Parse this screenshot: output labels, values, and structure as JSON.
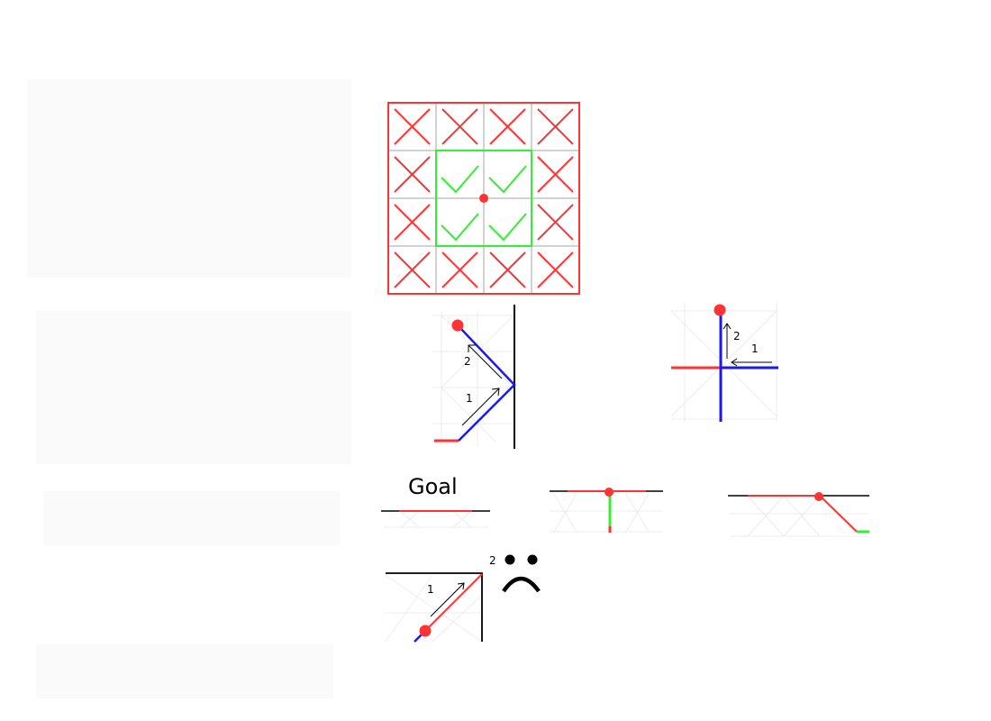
{
  "colors": {
    "red": "#ff3333",
    "green": "#33ee33",
    "blue": "#1a1aee",
    "black": "#000000",
    "grid": "#cccccc",
    "faint": "#e6e6e6"
  },
  "grid_panel": {
    "rows": 4,
    "cols": 4,
    "cells": [
      [
        "cross",
        "cross",
        "cross",
        "cross"
      ],
      [
        "cross",
        "check",
        "check",
        "cross"
      ],
      [
        "cross",
        "check",
        "check",
        "cross"
      ],
      [
        "cross",
        "cross",
        "cross",
        "cross"
      ]
    ]
  },
  "panel_wall_bounce": {
    "step1": "1",
    "step2": "2"
  },
  "panel_corner_turn": {
    "step1": "1",
    "step2": "2"
  },
  "panel_goal": {
    "label": "Goal"
  },
  "panel_sad": {
    "step1": "1",
    "step2": "2",
    "face_icon": "sad-face-icon"
  }
}
